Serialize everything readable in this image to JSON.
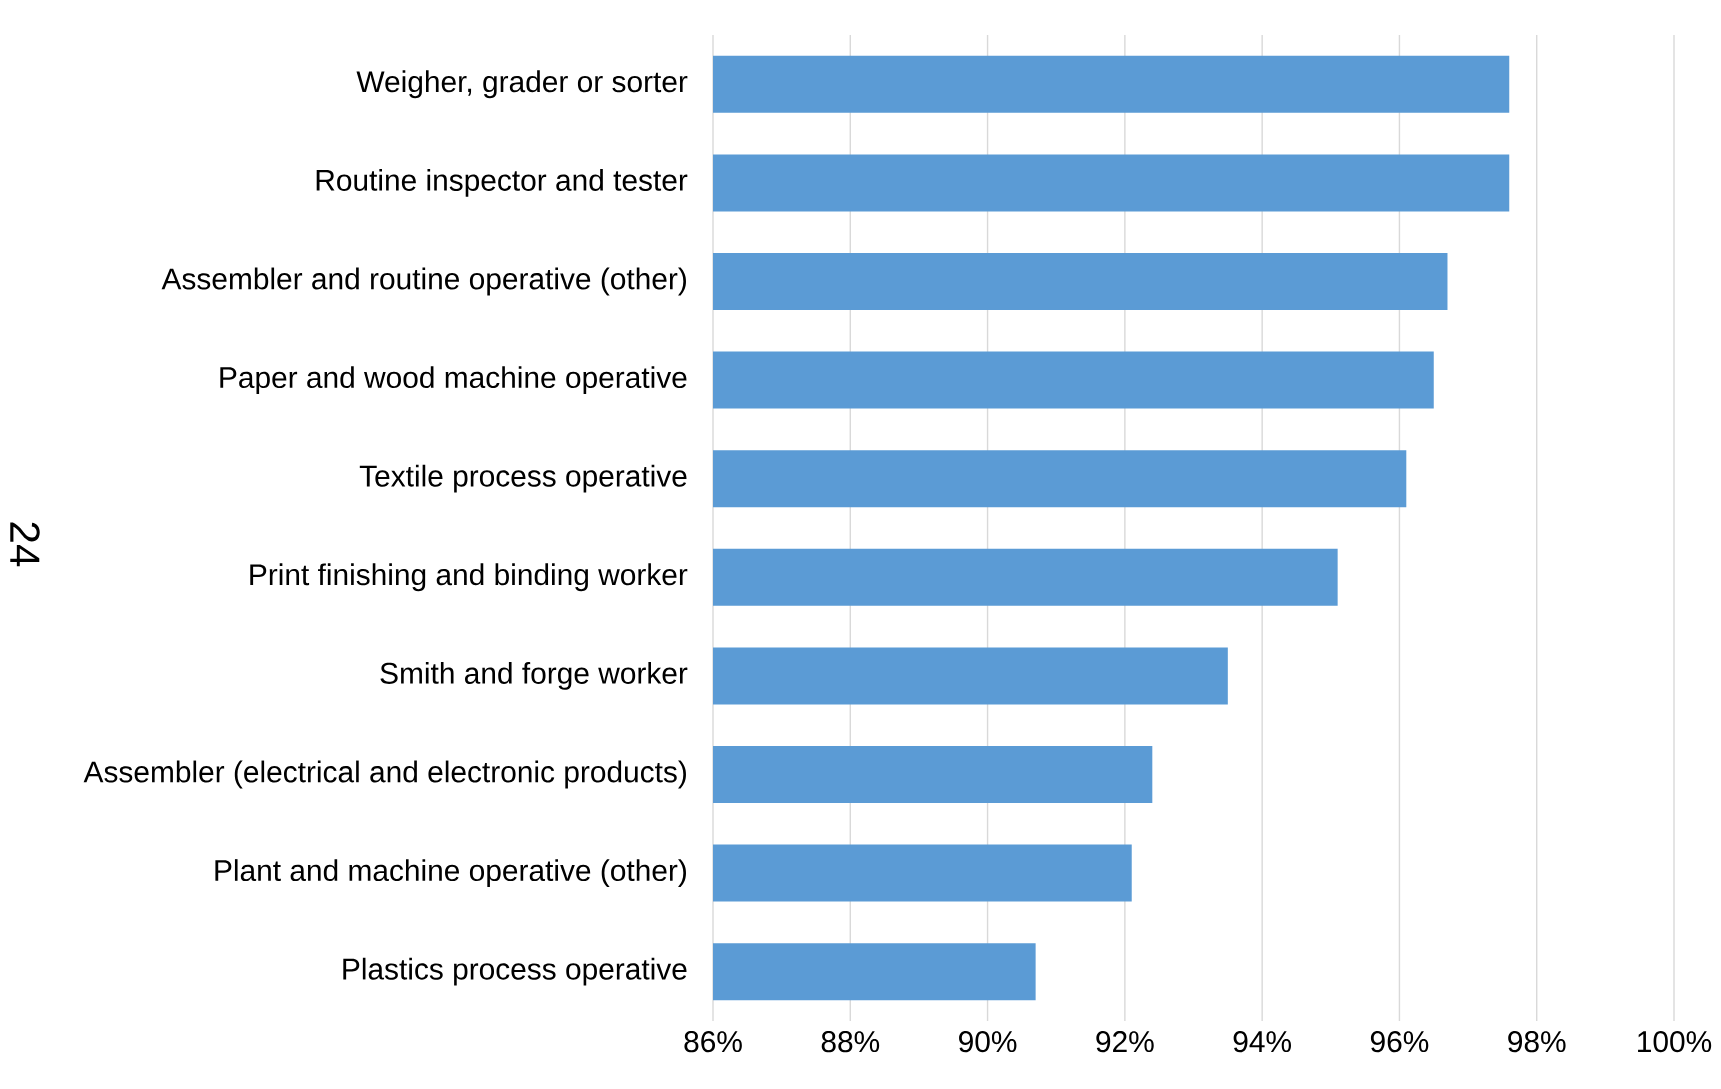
{
  "chart_data": {
    "type": "bar",
    "orientation": "horizontal",
    "categories": [
      "Weigher, grader or sorter",
      "Routine inspector and tester",
      "Assembler and routine operative (other)",
      "Paper and wood machine operative",
      "Textile process operative",
      "Print finishing and binding worker",
      "Smith and forge worker",
      "Assembler (electrical and electronic products)",
      "Plant and machine operative (other)",
      "Plastics process operative"
    ],
    "values": [
      97.6,
      97.6,
      96.7,
      96.5,
      96.1,
      95.1,
      93.5,
      92.4,
      92.1,
      90.7
    ],
    "color": "#5b9bd5",
    "xlim": [
      86,
      100
    ],
    "xticks": [
      {
        "value": 86,
        "label": "86%"
      },
      {
        "value": 88,
        "label": "88%"
      },
      {
        "value": 90,
        "label": "90%"
      },
      {
        "value": 92,
        "label": "92%"
      },
      {
        "value": 94,
        "label": "94%"
      },
      {
        "value": 96,
        "label": "96%"
      },
      {
        "value": 98,
        "label": "98%"
      },
      {
        "value": 100,
        "label": "100%"
      }
    ],
    "grid": "x",
    "annotations": [
      "24"
    ]
  }
}
